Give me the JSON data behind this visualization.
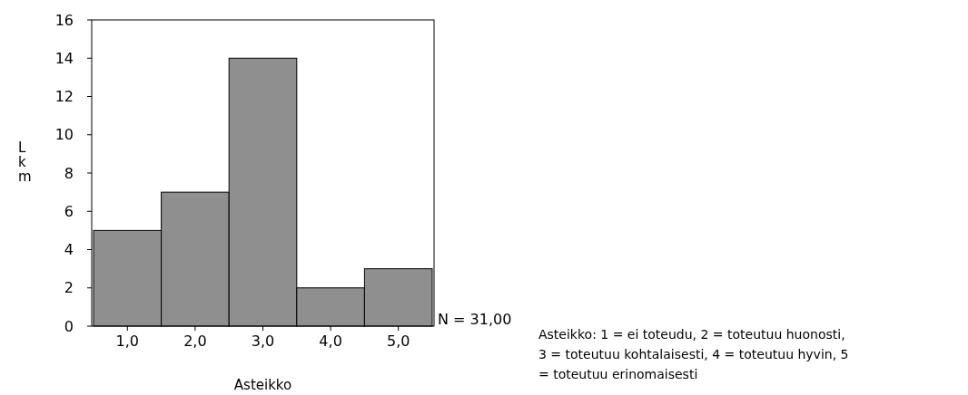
{
  "chart_data": {
    "type": "bar",
    "xlabel": "Asteikko",
    "ylabel": "Lkm",
    "categories": [
      "1,0",
      "2,0",
      "3,0",
      "4,0",
      "5,0"
    ],
    "values": [
      5,
      7,
      14,
      2,
      3
    ],
    "color": "#8f8f8f",
    "ylim": [
      0,
      16
    ],
    "yticks": [
      0,
      2,
      4,
      6,
      8,
      10,
      12,
      14,
      16
    ],
    "grid": false,
    "annotations": [
      "N = 31,00",
      "Asteikko: 1 = ei  toteudu, 2 = toteutuu huonosti, 3 = toteutuu kohtalaisesti, 4 = toteutuu hyvin, 5 = toteutuu erinomaisesti"
    ]
  }
}
